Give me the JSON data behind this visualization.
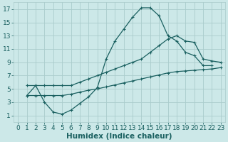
{
  "xlabel": "Humidex (Indice chaleur)",
  "xlim": [
    -0.5,
    23.5
  ],
  "ylim": [
    0,
    18
  ],
  "xticks": [
    0,
    1,
    2,
    3,
    4,
    5,
    6,
    7,
    8,
    9,
    10,
    11,
    12,
    13,
    14,
    15,
    16,
    17,
    18,
    19,
    20,
    21,
    22,
    23
  ],
  "yticks": [
    1,
    3,
    5,
    7,
    9,
    11,
    13,
    15,
    17
  ],
  "bg_color": "#cce8e8",
  "grid_color": "#aacccc",
  "line_color": "#1a6060",
  "series": [
    {
      "x": [
        1,
        2,
        3,
        4,
        5,
        6,
        7,
        8,
        9,
        10,
        11,
        12,
        13,
        14,
        15,
        16,
        17,
        18,
        19,
        20,
        21,
        22
      ],
      "y": [
        4,
        5.5,
        3,
        1.5,
        1.2,
        1.8,
        2.8,
        3.8,
        5.2,
        9.5,
        12.2,
        14.0,
        15.8,
        17.2,
        17.2,
        16.0,
        13.0,
        12.2,
        10.5,
        10.0,
        8.5,
        8.5
      ]
    },
    {
      "x": [
        1,
        2,
        3,
        4,
        5,
        6,
        7,
        8,
        9,
        10,
        11,
        12,
        13,
        14,
        15,
        16,
        17,
        18,
        19,
        20,
        21,
        22,
        23
      ],
      "y": [
        5.5,
        5.5,
        5.5,
        5.5,
        5.5,
        5.5,
        6.0,
        6.5,
        7.0,
        7.5,
        8.0,
        8.5,
        9.0,
        9.5,
        10.5,
        11.5,
        12.5,
        13.0,
        12.2,
        12.0,
        9.5,
        9.2,
        9.0
      ]
    },
    {
      "x": [
        1,
        2,
        3,
        4,
        5,
        6,
        7,
        8,
        9,
        10,
        11,
        12,
        13,
        14,
        15,
        16,
        17,
        18,
        19,
        20,
        21,
        22,
        23
      ],
      "y": [
        4.0,
        4.0,
        4.0,
        4.0,
        4.0,
        4.2,
        4.5,
        4.8,
        5.0,
        5.3,
        5.6,
        5.9,
        6.2,
        6.5,
        6.8,
        7.1,
        7.4,
        7.6,
        7.7,
        7.8,
        7.9,
        8.0,
        8.2
      ]
    }
  ],
  "tick_fontsize": 6.5,
  "label_fontsize": 7.5
}
